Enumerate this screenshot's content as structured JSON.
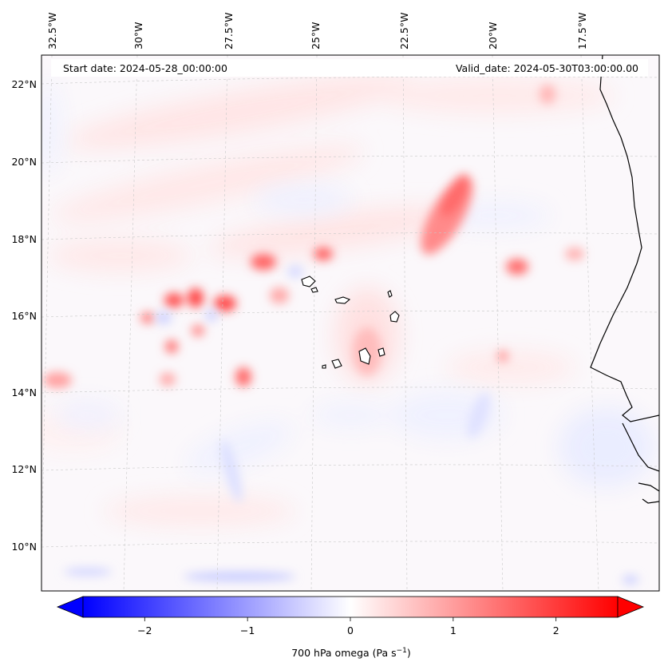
{
  "header": {
    "start_date": "Start date: 2024-05-28_00:00:00",
    "valid_date": "Valid_date: 2024-05-30T03:00:00.00"
  },
  "map": {
    "variable": "700 hPa omega",
    "projection": "lambert-conformal",
    "lon_labels": [
      "32.5°W",
      "30°W",
      "27.5°W",
      "25°W",
      "22.5°W",
      "20°W",
      "17.5°W"
    ],
    "lat_labels": [
      "22°N",
      "20°N",
      "18°N",
      "16°N",
      "14°N",
      "12°N",
      "10°N"
    ],
    "gridlines": true,
    "coastline_color": "#000000",
    "features": [
      "Cape Verde islands",
      "West African coastline"
    ]
  },
  "colorbar": {
    "label_main": "700 hPa omega (Pa s",
    "label_sup": "−1",
    "label_end": ")",
    "ticks": [
      "−2",
      "−1",
      "0",
      "1",
      "2"
    ],
    "tick_values": [
      -2,
      -1,
      0,
      1,
      2
    ],
    "range": [
      -2.6,
      2.6
    ],
    "extend": "both",
    "colormap": "bwr",
    "low_color": "#0000ff",
    "mid_color": "#ffffff",
    "high_color": "#ff0000"
  }
}
